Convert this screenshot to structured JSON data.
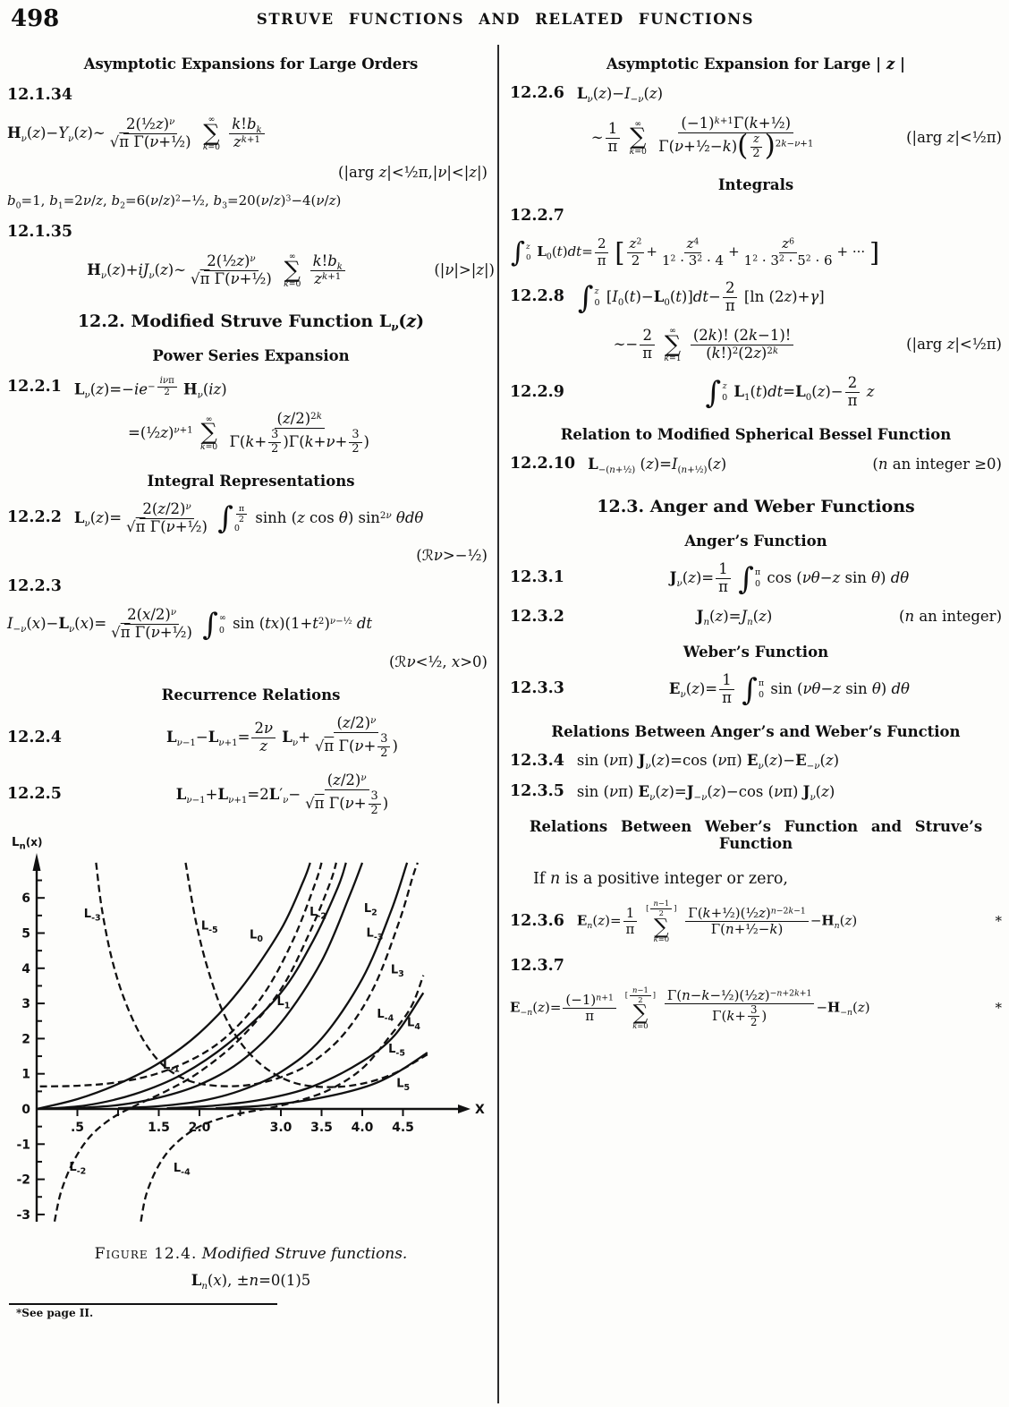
{
  "page": {
    "number": "498",
    "running_title": "STRUVE FUNCTIONS AND RELATED FUNCTIONS"
  },
  "left_column": {
    "blocks": [
      {
        "type": "subhead",
        "text": "Asymptotic Expansions for Large Orders"
      },
      {
        "type": "eqnum",
        "num": "12.1.34"
      },
      {
        "type": "eq",
        "math": "⟪H⟫_{ν}(z)−Y_{ν}(z)∼{2(½z)^{ν}}/{√π Γ(ν+½)} ∑_{k=0}^{∞} {k!b_{k}}/{z^{k+1}}",
        "align": "left"
      },
      {
        "type": "cond",
        "text": "(|⟦arg ⟧z|<½π,|ν|<|z|)"
      },
      {
        "type": "eq",
        "math": "b_{0}=1,  b_{1}=2ν/z,  b_{2}=6(ν/z)^{2}−½,  b_{3}=20(ν/z)^{3}−4(ν/z)",
        "align": "left",
        "size": "sm"
      },
      {
        "type": "eqnum",
        "num": "12.1.35"
      },
      {
        "type": "eq",
        "math": "⟪H⟫_{ν}(z)+iJ_{ν}(z)∼{2(½z)^{ν}}/{√π Γ(ν+½)} ∑_{k=0}^{∞} {k!b_{k}}/{z^{k+1}}",
        "cond": "(|ν|>|z|)",
        "align": "center"
      },
      {
        "type": "sechead",
        "text": "12.2.  Modified Struve Function ⟪L⟫_{⟨ν⟩}(⟨z⟩)"
      },
      {
        "type": "subhead",
        "text": "Power Series Expansion"
      },
      {
        "type": "eq",
        "num": "12.2.1",
        "math": "⟪L⟫_{ν}(z)=−ie^{−{iνπ}/{2}} ⟪H⟫_{ν}(iz)",
        "align": "left"
      },
      {
        "type": "eq",
        "math": "=(½z)^{ν+1} ∑_{k=0}^{∞} {(z/2)^{2k}}/{Γ(k+{3}/{2})Γ(k+ν+{3}/{2})}",
        "align": "center"
      },
      {
        "type": "subhead",
        "text": "Integral Representations"
      },
      {
        "type": "eq",
        "num": "12.2.2",
        "math": "⟪L⟫_{ν}(z)={2(z/2)^{ν}}/{√π Γ(ν+½)} ∫_{0}^{{π}/{2}} ⟦sinh⟧ (z ⟦cos⟧ θ) ⟦sin⟧^{2ν} θdθ",
        "align": "left"
      },
      {
        "type": "cond",
        "text": "(ℛν>−½)"
      },
      {
        "type": "eqnum",
        "num": "12.2.3"
      },
      {
        "type": "eq",
        "math": "I_{−ν}(x)−⟪L⟫_{ν}(x)={2(x/2)^{ν}}/{√π Γ(ν+½)} ∫_{0}^{∞} ⟦sin⟧ (tx)(1+t^{2})^{ν−½} dt",
        "align": "left"
      },
      {
        "type": "cond",
        "text": "(ℛν<½, x>0)"
      },
      {
        "type": "subhead",
        "text": "Recurrence Relations"
      },
      {
        "type": "eq",
        "num": "12.2.4",
        "math": "⟪L⟫_{ν−1}−⟪L⟫_{ν+1}={2ν}/{z} ⟪L⟫_{ν}+{(z/2)^{ν}}/{√π Γ(ν+{3}/{2})}",
        "align": "center"
      },
      {
        "type": "eq",
        "num": "12.2.5",
        "math": "⟪L⟫_{ν−1}+⟪L⟫_{ν+1}=2⟪L⟫′_{ν}−{(z/2)^{ν}}/{√π Γ(ν+{3}/{2})}",
        "align": "center"
      }
    ]
  },
  "right_column": {
    "blocks": [
      {
        "type": "subhead",
        "text": "Asymptotic Expansion for Large | ⟨z⟩ |"
      },
      {
        "type": "eq",
        "num": "12.2.6",
        "math": "⟪L⟫_{ν}(z)−I_{−ν}(z)",
        "align": "left"
      },
      {
        "type": "eq",
        "math": "∼{1}/{π} ∑_{k=0}^{∞} {(−1)^{k+1}Γ(k+½)}/{Γ(ν+½−k)❨{z}/{2}❩^{2k−ν+1}}",
        "cond": "(|⟦arg ⟧z|<½π)",
        "align": "center"
      },
      {
        "type": "subhead",
        "text": "Integrals"
      },
      {
        "type": "eqnum",
        "num": "12.2.7"
      },
      {
        "type": "eq",
        "math": "∫_{0}^{z} ⟪L⟫_{0}(t)dt={2}/{π} ❲{z^{2}}/{2}+{z^{4}}/{1^{2} · 3^{2} · 4}+{z^{6}}/{1^{2} · 3^{2} · 5^{2} · 6}+ ··· ❳",
        "align": "left",
        "size": "sm"
      },
      {
        "type": "eq",
        "num": "12.2.8",
        "math": "∫_{0}^{z} [I_{0}(t)−⟪L⟫_{0}(t)]dt−{2}/{π} [⟦ln⟧ (2z)+γ]",
        "align": "left"
      },
      {
        "type": "eq",
        "math": "∼−{2}/{π} ∑_{k=1}^{∞} {(2k)! (2k−1)!}/{(k!)^{2}(2z)^{2k}}",
        "cond": "(|⟦arg ⟧z|<½π)",
        "align": "center"
      },
      {
        "type": "eq",
        "num": "12.2.9",
        "math": "∫_{0}^{z} ⟪L⟫_{1}(t)dt=⟪L⟫_{0}(z)−{2}/{π} z",
        "align": "center"
      },
      {
        "type": "subhead",
        "text": "Relation to Modified Spherical Bessel Function"
      },
      {
        "type": "eq",
        "num": "12.2.10",
        "math": "⟪L⟫_{−(n+½)} (z)=I_{(n+½)}(z)",
        "cond": "(⟨n⟩ ⟦an integer⟧ ≥0)",
        "align": "left"
      },
      {
        "type": "sechead",
        "text": "12.3.  Anger and Weber Functions"
      },
      {
        "type": "subhead",
        "text": "Anger’s Function"
      },
      {
        "type": "eq",
        "num": "12.3.1",
        "math": "⟪J⟫_{ν}(z)={1}/{π} ∫_{0}^{π} ⟦cos⟧ (νθ−z ⟦sin⟧ θ) dθ",
        "align": "center"
      },
      {
        "type": "eq",
        "num": "12.3.2",
        "math": "⟪J⟫_{n}(z)=J_{n}(z)",
        "cond": "(⟨n⟩ ⟦an integer⟧)",
        "align": "center"
      },
      {
        "type": "subhead",
        "text": "Weber’s Function"
      },
      {
        "type": "eq",
        "num": "12.3.3",
        "math": "⟪E⟫_{ν}(z)={1}/{π} ∫_{0}^{π} ⟦sin⟧ (νθ−z ⟦sin⟧ θ) dθ",
        "align": "center"
      },
      {
        "type": "subhead",
        "text": "Relations Between Anger’s and Weber’s Function"
      },
      {
        "type": "eq",
        "num": "12.3.4",
        "math": "⟦sin⟧ (νπ) ⟪J⟫_{ν}(z)=⟦cos⟧ (νπ) ⟪E⟫_{ν}(z)−⟪E⟫_{−ν}(z)",
        "align": "left"
      },
      {
        "type": "eq",
        "num": "12.3.5",
        "math": "⟦sin⟧ (νπ) ⟪E⟫_{ν}(z)=⟪J⟫_{−ν}(z)−⟦cos⟧ (νπ) ⟪J⟫_{ν}(z)",
        "align": "left"
      },
      {
        "type": "subhead",
        "sub2": true,
        "text": "Relations Between Weber’s Function and Struve’s Function"
      },
      {
        "type": "textline",
        "text": "If ⟨n⟩ is a positive integer or zero,"
      },
      {
        "type": "eq",
        "num": "12.3.6",
        "math": "⟪E⟫_{n}(z)={1}/{π} ∑_{k=0}^{[{n−1}/{2}]} {Γ(k+½)(½z)^{n−2k−1}}/{Γ(n+½−k)}−⟪H⟫_{n}(z)",
        "cond": "*",
        "align": "left",
        "size": "sm"
      },
      {
        "type": "eqnum",
        "num": "12.3.7"
      },
      {
        "type": "eq",
        "math": "⟪E⟫_{−n}(z)={(−1)^{n+1}}/{π} ∑_{k=0}^{[{n−1}/{2}]} {Γ(n−k−½)(½z)^{−n+2k+1}}/{Γ(k+{3}/{2})}−⟪H⟫_{−n}(z)",
        "cond": "*",
        "align": "left",
        "size": "sm"
      }
    ]
  },
  "figure": {
    "axis_label_y": "Ln(x)",
    "axis_label_x": "X",
    "caption_prefix": "Figure 12.4.",
    "caption_italic": "Modified Struve functions.",
    "subcaption": "⟪L⟫_{n}(x),  ±n=0(1)5",
    "footnote": "*See page II."
  },
  "chart_data": {
    "type": "line",
    "title": "Figure 12.4. Modified Struve functions.",
    "subtitle": "Ln(x), ±n=0(1)5",
    "xlabel": "X",
    "ylabel": "Ln(x)",
    "xlim": [
      0,
      4.9
    ],
    "ylim": [
      -3.2,
      7
    ],
    "grid": false,
    "x_ticks": [
      0.5,
      1,
      1.5,
      2,
      2.5,
      3,
      3.5,
      4,
      4.5
    ],
    "x_tick_labels": {
      "0.5": ".5",
      "1.5": "1.5",
      "2": "2.0",
      "3": "3.0",
      "3.5": "3.5",
      "4": "4.0",
      "4.5": "4.5"
    },
    "y_ticks": [
      6,
      5,
      4,
      3,
      2,
      1,
      0,
      -1,
      -2,
      -3
    ],
    "series": [
      {
        "name": "L0",
        "order": 0,
        "style": "solid",
        "sub": "0",
        "points": [
          [
            0,
            0
          ],
          [
            0.5,
            0.28
          ],
          [
            1,
            0.71
          ],
          [
            1.5,
            1.3
          ],
          [
            2,
            2.16
          ],
          [
            2.5,
            3.4
          ],
          [
            3,
            5.1
          ],
          [
            3.28,
            6.5
          ],
          [
            3.36,
            7
          ]
        ],
        "labels": [
          {
            "x": 2.78,
            "y": 4.85,
            "a": "end"
          }
        ]
      },
      {
        "name": "L1",
        "order": 1,
        "style": "solid",
        "sub": "1",
        "points": [
          [
            0,
            0
          ],
          [
            0.6,
            0.1
          ],
          [
            1.2,
            0.42
          ],
          [
            1.8,
            1.0
          ],
          [
            2.4,
            1.95
          ],
          [
            3,
            3.3
          ],
          [
            3.4,
            4.8
          ],
          [
            3.7,
            6.3
          ],
          [
            3.8,
            7
          ]
        ],
        "labels": [
          {
            "x": 2.95,
            "y": 2.95,
            "a": "start"
          }
        ]
      },
      {
        "name": "L2",
        "order": 2,
        "style": "solid",
        "sub": "2",
        "points": [
          [
            0.4,
            0.01
          ],
          [
            1,
            0.11
          ],
          [
            1.5,
            0.32
          ],
          [
            2,
            0.69
          ],
          [
            2.5,
            1.34
          ],
          [
            3,
            2.45
          ],
          [
            3.5,
            4.2
          ],
          [
            3.85,
            6.1
          ],
          [
            4,
            7
          ]
        ],
        "labels": [
          {
            "x": 4.02,
            "y": 5.6,
            "a": "start"
          }
        ]
      },
      {
        "name": "L3",
        "order": 3,
        "style": "solid",
        "sub": "3",
        "points": [
          [
            1,
            0.02
          ],
          [
            1.5,
            0.08
          ],
          [
            2,
            0.22
          ],
          [
            2.5,
            0.52
          ],
          [
            3,
            1.05
          ],
          [
            3.5,
            2.0
          ],
          [
            4,
            3.7
          ],
          [
            4.35,
            5.6
          ],
          [
            4.55,
            7
          ]
        ],
        "labels": [
          {
            "x": 4.35,
            "y": 3.85,
            "a": "start"
          }
        ]
      },
      {
        "name": "L4",
        "order": 4,
        "style": "solid",
        "sub": "4",
        "points": [
          [
            1.6,
            0.02
          ],
          [
            2.2,
            0.1
          ],
          [
            2.8,
            0.28
          ],
          [
            3.4,
            0.65
          ],
          [
            4,
            1.35
          ],
          [
            4.4,
            2.1
          ],
          [
            4.75,
            3.3
          ]
        ],
        "labels": [
          {
            "x": 4.55,
            "y": 2.35,
            "a": "start"
          }
        ]
      },
      {
        "name": "L5",
        "order": 5,
        "style": "solid",
        "sub": "5",
        "points": [
          [
            2.2,
            0.02
          ],
          [
            2.8,
            0.1
          ],
          [
            3.4,
            0.28
          ],
          [
            4,
            0.6
          ],
          [
            4.4,
            1.0
          ],
          [
            4.8,
            1.6
          ]
        ],
        "labels": [
          {
            "x": 4.42,
            "y": 0.62,
            "a": "start"
          }
        ]
      },
      {
        "name": "L-1",
        "order": -1,
        "style": "dashed",
        "sub": "-1",
        "points": [
          [
            0.04,
            0.64
          ],
          [
            0.5,
            0.66
          ],
          [
            1,
            0.76
          ],
          [
            1.5,
            1.02
          ],
          [
            2,
            1.52
          ],
          [
            2.4,
            2.2
          ],
          [
            2.8,
            3.3
          ],
          [
            3.15,
            4.8
          ],
          [
            3.42,
            6.4
          ],
          [
            3.5,
            7
          ]
        ],
        "labels": [
          {
            "x": 1.55,
            "y": 1.15,
            "a": "start"
          }
        ]
      },
      {
        "name": "L-2",
        "order": -2,
        "style": "dashed",
        "sub": "-2",
        "points": [
          [
            0.22,
            -3.2
          ],
          [
            0.3,
            -2.35
          ],
          [
            0.45,
            -1.5
          ],
          [
            0.65,
            -0.8
          ],
          [
            0.9,
            -0.3
          ],
          [
            1.2,
            0.08
          ],
          [
            1.6,
            0.52
          ],
          [
            2,
            1.05
          ],
          [
            2.5,
            2.0
          ],
          [
            3,
            3.4
          ],
          [
            3.35,
            5.0
          ],
          [
            3.6,
            6.4
          ],
          [
            3.68,
            7
          ]
        ],
        "labels": [
          {
            "x": 3.56,
            "y": 5.5,
            "a": "end"
          },
          {
            "x": 0.4,
            "y": -1.75,
            "a": "start"
          }
        ]
      },
      {
        "name": "L-3",
        "order": -3,
        "style": "dashed",
        "sub": "-3",
        "points": [
          [
            0.73,
            7
          ],
          [
            0.8,
            5.7
          ],
          [
            0.92,
            4.3
          ],
          [
            1.08,
            3.1
          ],
          [
            1.3,
            2.0
          ],
          [
            1.55,
            1.25
          ],
          [
            1.85,
            0.82
          ],
          [
            2.2,
            0.66
          ],
          [
            2.6,
            0.68
          ],
          [
            3,
            0.9
          ],
          [
            3.4,
            1.35
          ],
          [
            3.8,
            2.2
          ],
          [
            4.15,
            3.5
          ],
          [
            4.45,
            5.3
          ],
          [
            4.62,
            6.6
          ],
          [
            4.68,
            7
          ]
        ],
        "labels": [
          {
            "x": 0.58,
            "y": 5.45,
            "a": "start"
          },
          {
            "x": 4.05,
            "y": 4.9,
            "a": "start"
          }
        ]
      },
      {
        "name": "L-4",
        "order": -4,
        "style": "dashed",
        "sub": "-4",
        "points": [
          [
            1.28,
            -3.2
          ],
          [
            1.35,
            -2.4
          ],
          [
            1.5,
            -1.6
          ],
          [
            1.7,
            -1.0
          ],
          [
            2,
            -0.5
          ],
          [
            2.4,
            -0.18
          ],
          [
            2.85,
            0.02
          ],
          [
            3.2,
            0.22
          ],
          [
            3.6,
            0.55
          ],
          [
            4,
            1.15
          ],
          [
            4.35,
            2.1
          ],
          [
            4.6,
            2.9
          ],
          [
            4.75,
            3.8
          ]
        ],
        "labels": [
          {
            "x": 1.68,
            "y": -1.78,
            "a": "start"
          },
          {
            "x": 4.18,
            "y": 2.6,
            "a": "start"
          }
        ]
      },
      {
        "name": "L-5",
        "order": -5,
        "style": "dashed",
        "sub": "-5",
        "points": [
          [
            1.83,
            7
          ],
          [
            1.95,
            5.4
          ],
          [
            2.1,
            4.0
          ],
          [
            2.3,
            2.7
          ],
          [
            2.55,
            1.75
          ],
          [
            2.85,
            1.1
          ],
          [
            3.2,
            0.72
          ],
          [
            3.6,
            0.62
          ],
          [
            4,
            0.72
          ],
          [
            4.4,
            1.02
          ],
          [
            4.8,
            1.55
          ]
        ],
        "labels": [
          {
            "x": 2.02,
            "y": 5.1,
            "a": "start"
          },
          {
            "x": 4.32,
            "y": 1.6,
            "a": "start"
          }
        ]
      }
    ]
  }
}
